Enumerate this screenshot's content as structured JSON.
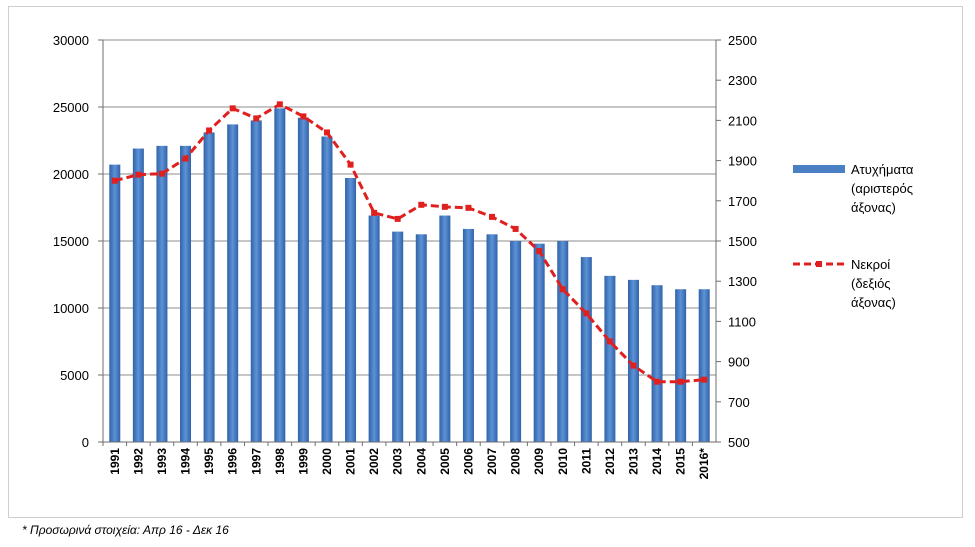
{
  "chart_data": {
    "type": "bar",
    "categories": [
      "1991",
      "1992",
      "1993",
      "1994",
      "1995",
      "1996",
      "1997",
      "1998",
      "1999",
      "2000",
      "2001",
      "2002",
      "2003",
      "2004",
      "2005",
      "2006",
      "2007",
      "2008",
      "2009",
      "2010",
      "2011",
      "2012",
      "2013",
      "2014",
      "2015",
      "2016*"
    ],
    "series": [
      {
        "name": "Ατυχήματα (αριστερός άξονας)",
        "type": "bar",
        "axis": "left",
        "color": "#4a7fc4",
        "values": [
          20700,
          21900,
          22100,
          22100,
          23100,
          23700,
          24000,
          24900,
          24200,
          22800,
          19700,
          16900,
          15700,
          15500,
          16900,
          15900,
          15500,
          15000,
          14800,
          15000,
          13800,
          12400,
          12100,
          11700,
          11400,
          11400
        ]
      },
      {
        "name": "Νεκροί (δεξιός άξονας)",
        "type": "line",
        "axis": "right",
        "color": "#e0201e",
        "values": [
          1800,
          1830,
          1835,
          1910,
          2050,
          2160,
          2110,
          2180,
          2120,
          2040,
          1880,
          1640,
          1610,
          1680,
          1670,
          1665,
          1620,
          1560,
          1450,
          1260,
          1140,
          1000,
          880,
          800,
          800,
          810
        ]
      }
    ],
    "yleft": {
      "min": 0,
      "max": 30000,
      "ticks": [
        "0",
        "5000",
        "10000",
        "15000",
        "20000",
        "25000",
        "30000"
      ]
    },
    "yright": {
      "min": 500,
      "max": 2500,
      "ticks": [
        "500",
        "700",
        "900",
        "1100",
        "1300",
        "1500",
        "1700",
        "1900",
        "2100",
        "2300",
        "2500"
      ]
    },
    "legend": {
      "placement": "right",
      "bar_label_lines": [
        "Ατυχήματα",
        "(αριστερός",
        "άξονας)"
      ],
      "line_label_lines": [
        "Νεκροί",
        "(δεξιός",
        "άξονας)"
      ]
    },
    "grid": true
  },
  "footnote": "* Προσωρινά στοιχεία: Απρ 16 - Δεκ 16"
}
